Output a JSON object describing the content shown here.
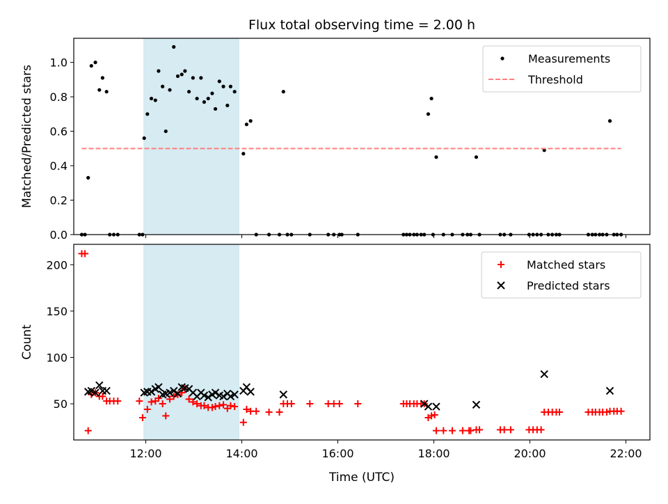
{
  "chart_data": [
    {
      "type": "scatter",
      "title": "Flux total observing time = 2.00 h",
      "xlabel": "",
      "ylabel": "Matched/Predicted stars",
      "xlim": [
        "10:30",
        "22:30"
      ],
      "ylim": [
        0,
        1.14
      ],
      "yticks": [
        0.0,
        0.2,
        0.4,
        0.6,
        0.8,
        1.0
      ],
      "ytick_labels": [
        "0.0",
        "0.2",
        "0.4",
        "0.6",
        "0.8",
        "1.0"
      ],
      "xticks": [
        "12:00",
        "14:00",
        "16:00",
        "18:00",
        "20:00",
        "22:00"
      ],
      "x_ticklabels_visible": false,
      "grid": false,
      "legend": "top-right",
      "shaded_span": {
        "start": "11:57",
        "end": "13:57",
        "color": "#add8e6"
      },
      "series": [
        {
          "name": "Measurements",
          "kind": "point",
          "color": "#000000",
          "points": [
            [
              "10:40",
              0
            ],
            [
              "10:44",
              0
            ],
            [
              "10:48",
              0.33
            ],
            [
              "10:52",
              0.98
            ],
            [
              "10:57",
              1.0
            ],
            [
              "11:02",
              0.84
            ],
            [
              "11:06",
              0.91
            ],
            [
              "11:11",
              0.83
            ],
            [
              "11:15",
              0
            ],
            [
              "11:20",
              0
            ],
            [
              "11:25",
              0
            ],
            [
              "11:52",
              0
            ],
            [
              "11:56",
              0
            ],
            [
              "11:58",
              0.56
            ],
            [
              "12:02",
              0.7
            ],
            [
              "12:07",
              0.79
            ],
            [
              "12:12",
              0.78
            ],
            [
              "12:16",
              0.95
            ],
            [
              "12:21",
              0.86
            ],
            [
              "12:25",
              0.6
            ],
            [
              "12:30",
              0.84
            ],
            [
              "12:35",
              1.09
            ],
            [
              "12:40",
              0.92
            ],
            [
              "12:45",
              0.93
            ],
            [
              "12:49",
              0.95
            ],
            [
              "12:54",
              0.83
            ],
            [
              "12:59",
              0.91
            ],
            [
              "13:04",
              0.79
            ],
            [
              "13:09",
              0.91
            ],
            [
              "13:13",
              0.77
            ],
            [
              "13:18",
              0.79
            ],
            [
              "13:23",
              0.82
            ],
            [
              "13:27",
              0.73
            ],
            [
              "13:32",
              0.89
            ],
            [
              "13:37",
              0.86
            ],
            [
              "13:42",
              0.75
            ],
            [
              "13:46",
              0.86
            ],
            [
              "13:51",
              0.83
            ],
            [
              "14:02",
              0.47
            ],
            [
              "14:06",
              0.64
            ],
            [
              "14:11",
              0.66
            ],
            [
              "14:18",
              0
            ],
            [
              "14:34",
              0
            ],
            [
              "14:47",
              0
            ],
            [
              "14:52",
              0.83
            ],
            [
              "14:57",
              0
            ],
            [
              "15:02",
              0
            ],
            [
              "15:25",
              0
            ],
            [
              "15:48",
              0
            ],
            [
              "15:55",
              0
            ],
            [
              "16:02",
              0
            ],
            [
              "16:05",
              0
            ],
            [
              "16:25",
              0
            ],
            [
              "17:22",
              0
            ],
            [
              "17:26",
              0
            ],
            [
              "17:30",
              0
            ],
            [
              "17:35",
              0
            ],
            [
              "17:39",
              0
            ],
            [
              "17:44",
              0
            ],
            [
              "17:48",
              0
            ],
            [
              "17:53",
              0.7
            ],
            [
              "17:57",
              0.79
            ],
            [
              "17:59",
              0
            ],
            [
              "18:03",
              0.45
            ],
            [
              "18:12",
              0
            ],
            [
              "18:23",
              0
            ],
            [
              "18:36",
              0
            ],
            [
              "18:42",
              0
            ],
            [
              "18:46",
              0
            ],
            [
              "18:53",
              0.45
            ],
            [
              "18:57",
              0
            ],
            [
              "19:23",
              0
            ],
            [
              "19:28",
              0
            ],
            [
              "19:36",
              0
            ],
            [
              "19:59",
              0
            ],
            [
              "20:04",
              0
            ],
            [
              "20:09",
              0
            ],
            [
              "20:14",
              0
            ],
            [
              "20:18",
              0.49
            ],
            [
              "20:23",
              0
            ],
            [
              "20:28",
              0
            ],
            [
              "20:33",
              0
            ],
            [
              "20:37",
              0
            ],
            [
              "21:13",
              0
            ],
            [
              "21:18",
              0
            ],
            [
              "21:22",
              0
            ],
            [
              "21:27",
              0
            ],
            [
              "21:31",
              0
            ],
            [
              "21:36",
              0
            ],
            [
              "21:40",
              0.66
            ],
            [
              "21:45",
              0
            ],
            [
              "21:49",
              0
            ],
            [
              "21:54",
              0
            ]
          ]
        },
        {
          "name": "Threshold",
          "kind": "dashed-line",
          "color": "#ff7f7f",
          "points": [
            [
              "10:40",
              0.5
            ],
            [
              "21:54",
              0.5
            ]
          ]
        }
      ]
    },
    {
      "type": "scatter",
      "title": "",
      "xlabel": "Time (UTC)",
      "ylabel": "Count",
      "xlim": [
        "10:30",
        "22:30"
      ],
      "ylim": [
        11,
        222
      ],
      "yticks": [
        50,
        100,
        150,
        200
      ],
      "ytick_labels": [
        "50",
        "100",
        "150",
        "200"
      ],
      "xticks": [
        "12:00",
        "14:00",
        "16:00",
        "18:00",
        "20:00",
        "22:00"
      ],
      "xtick_labels": [
        "12:00",
        "14:00",
        "16:00",
        "18:00",
        "20:00",
        "22:00"
      ],
      "grid": false,
      "legend": "top-right",
      "shaded_span": {
        "start": "11:57",
        "end": "13:57",
        "color": "#add8e6"
      },
      "series": [
        {
          "name": "Matched stars",
          "kind": "plus",
          "color": "#ff0000",
          "points": [
            [
              "10:40",
              212
            ],
            [
              "10:44",
              212
            ],
            [
              "10:48",
              21
            ],
            [
              "10:52",
              60
            ],
            [
              "10:57",
              62
            ],
            [
              "11:02",
              58
            ],
            [
              "11:06",
              58
            ],
            [
              "11:11",
              53
            ],
            [
              "11:15",
              53
            ],
            [
              "11:20",
              53
            ],
            [
              "11:25",
              53
            ],
            [
              "11:52",
              53
            ],
            [
              "11:56",
              35
            ],
            [
              "12:02",
              44
            ],
            [
              "12:07",
              52
            ],
            [
              "12:12",
              53
            ],
            [
              "12:16",
              56
            ],
            [
              "12:21",
              50
            ],
            [
              "12:25",
              37
            ],
            [
              "12:30",
              55
            ],
            [
              "12:35",
              58
            ],
            [
              "12:40",
              60
            ],
            [
              "12:45",
              62
            ],
            [
              "12:49",
              66
            ],
            [
              "12:54",
              55
            ],
            [
              "12:59",
              52
            ],
            [
              "13:04",
              50
            ],
            [
              "13:09",
              48
            ],
            [
              "13:13",
              48
            ],
            [
              "13:18",
              46
            ],
            [
              "13:23",
              46
            ],
            [
              "13:27",
              47
            ],
            [
              "13:32",
              48
            ],
            [
              "13:37",
              49
            ],
            [
              "13:42",
              45
            ],
            [
              "13:46",
              48
            ],
            [
              "13:51",
              47
            ],
            [
              "14:02",
              30
            ],
            [
              "14:06",
              44
            ],
            [
              "14:11",
              42
            ],
            [
              "14:18",
              42
            ],
            [
              "14:34",
              41
            ],
            [
              "14:47",
              41
            ],
            [
              "14:52",
              50
            ],
            [
              "14:57",
              50
            ],
            [
              "15:02",
              50
            ],
            [
              "15:25",
              50
            ],
            [
              "15:48",
              50
            ],
            [
              "15:55",
              50
            ],
            [
              "16:02",
              50
            ],
            [
              "16:25",
              50
            ],
            [
              "17:22",
              50
            ],
            [
              "17:26",
              50
            ],
            [
              "17:30",
              50
            ],
            [
              "17:35",
              50
            ],
            [
              "17:39",
              50
            ],
            [
              "17:44",
              50
            ],
            [
              "17:48",
              50
            ],
            [
              "17:53",
              35
            ],
            [
              "17:57",
              37
            ],
            [
              "18:01",
              38
            ],
            [
              "18:03",
              21
            ],
            [
              "18:12",
              21
            ],
            [
              "18:23",
              21
            ],
            [
              "18:36",
              21
            ],
            [
              "18:44",
              21
            ],
            [
              "18:46",
              21
            ],
            [
              "18:53",
              22
            ],
            [
              "18:57",
              22
            ],
            [
              "19:23",
              22
            ],
            [
              "19:28",
              22
            ],
            [
              "19:36",
              22
            ],
            [
              "19:59",
              22
            ],
            [
              "20:04",
              22
            ],
            [
              "20:09",
              22
            ],
            [
              "20:14",
              22
            ],
            [
              "20:18",
              41
            ],
            [
              "20:23",
              41
            ],
            [
              "20:28",
              41
            ],
            [
              "20:33",
              41
            ],
            [
              "20:37",
              41
            ],
            [
              "21:13",
              41
            ],
            [
              "21:18",
              41
            ],
            [
              "21:22",
              41
            ],
            [
              "21:27",
              41
            ],
            [
              "21:31",
              41
            ],
            [
              "21:36",
              41
            ],
            [
              "21:40",
              42
            ],
            [
              "21:45",
              42
            ],
            [
              "21:49",
              42
            ],
            [
              "21:54",
              42
            ]
          ]
        },
        {
          "name": "Predicted stars",
          "kind": "cross",
          "color": "#000000",
          "points": [
            [
              "10:48",
              63
            ],
            [
              "10:52",
              64
            ],
            [
              "10:57",
              62
            ],
            [
              "11:02",
              70
            ],
            [
              "11:06",
              64
            ],
            [
              "11:11",
              64
            ],
            [
              "11:58",
              62
            ],
            [
              "12:02",
              63
            ],
            [
              "12:07",
              63
            ],
            [
              "12:12",
              66
            ],
            [
              "12:16",
              68
            ],
            [
              "12:21",
              60
            ],
            [
              "12:25",
              61
            ],
            [
              "12:30",
              62
            ],
            [
              "12:35",
              64
            ],
            [
              "12:40",
              61
            ],
            [
              "12:45",
              68
            ],
            [
              "12:49",
              67
            ],
            [
              "12:54",
              66
            ],
            [
              "12:59",
              62
            ],
            [
              "13:04",
              58
            ],
            [
              "13:09",
              62
            ],
            [
              "13:13",
              59
            ],
            [
              "13:18",
              57
            ],
            [
              "13:23",
              60
            ],
            [
              "13:27",
              62
            ],
            [
              "13:32",
              59
            ],
            [
              "13:37",
              58
            ],
            [
              "13:42",
              61
            ],
            [
              "13:46",
              58
            ],
            [
              "13:51",
              60
            ],
            [
              "14:02",
              64
            ],
            [
              "14:06",
              68
            ],
            [
              "14:11",
              63
            ],
            [
              "14:52",
              60
            ],
            [
              "17:48",
              50
            ],
            [
              "17:53",
              47
            ],
            [
              "18:03",
              47
            ],
            [
              "18:53",
              49
            ],
            [
              "20:18",
              82
            ],
            [
              "21:40",
              64
            ]
          ]
        }
      ]
    }
  ]
}
